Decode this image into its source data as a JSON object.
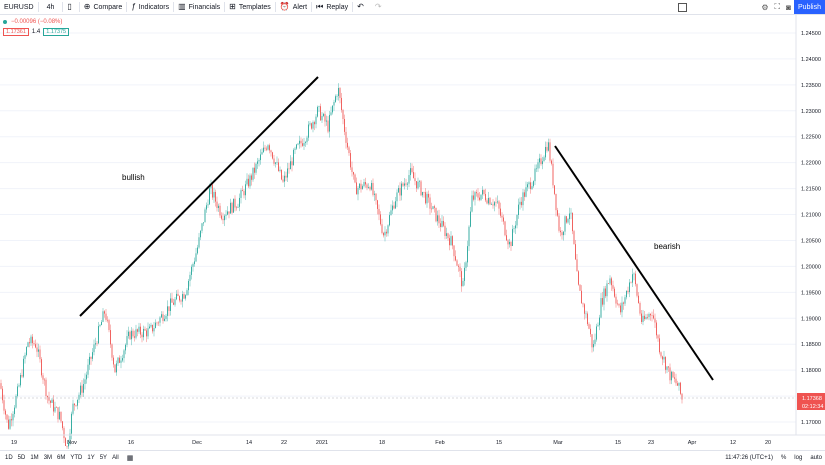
{
  "toolbar": {
    "symbol": "EURUSD",
    "interval": "4h",
    "compare": "Compare",
    "indicators": "Indicators",
    "financials": "Financials",
    "templates": "Templates",
    "alert": "Alert",
    "replay": "Replay",
    "publish": "Publish"
  },
  "legend": {
    "change": "−0.00096 (−0.08%)",
    "bid": "1.17361",
    "spread": "1.4",
    "ask": "1.17375"
  },
  "annotations": {
    "bullish": "bullish",
    "bearish": "bearish"
  },
  "price_axis": {
    "ticks": [
      "1.24500",
      "1.24000",
      "1.23500",
      "1.23000",
      "1.22500",
      "1.22000",
      "1.21500",
      "1.21000",
      "1.20500",
      "1.20000",
      "1.19500",
      "1.19000",
      "1.18500",
      "1.18000",
      "1.17500",
      "1.17000"
    ],
    "last_price": "1.17368",
    "countdown": "02:12:34"
  },
  "time_axis": {
    "labels": [
      "19",
      "Nov",
      "16",
      "Dec",
      "14",
      "22",
      "2021",
      "18",
      "Feb",
      "15",
      "Mar",
      "15",
      "23",
      "Apr",
      "12",
      "20"
    ]
  },
  "bottom": {
    "ranges": [
      "1D",
      "5D",
      "1M",
      "3M",
      "6M",
      "YTD",
      "1Y",
      "5Y",
      "All"
    ],
    "clock": "11:47:26 (UTC+1)",
    "percent": "%",
    "log": "log",
    "auto": "auto"
  },
  "colors": {
    "up": "#26a69a",
    "down": "#ef5350",
    "accent": "#2962ff"
  },
  "chart_data": {
    "type": "candlestick",
    "symbol": "EURUSD",
    "interval": "4h",
    "ylim": [
      1.1675,
      1.2475
    ],
    "price_path": [
      [
        0,
        1.1775
      ],
      [
        8,
        1.169
      ],
      [
        18,
        1.176
      ],
      [
        28,
        1.1855
      ],
      [
        36,
        1.185
      ],
      [
        48,
        1.1745
      ],
      [
        60,
        1.171
      ],
      [
        67,
        1.165
      ],
      [
        73,
        1.173
      ],
      [
        83,
        1.177
      ],
      [
        95,
        1.185
      ],
      [
        105,
        1.1915
      ],
      [
        115,
        1.18
      ],
      [
        130,
        1.187
      ],
      [
        150,
        1.1875
      ],
      [
        170,
        1.1925
      ],
      [
        185,
        1.195
      ],
      [
        198,
        1.204
      ],
      [
        210,
        1.215
      ],
      [
        222,
        1.21
      ],
      [
        238,
        1.2125
      ],
      [
        252,
        1.2175
      ],
      [
        268,
        1.224
      ],
      [
        283,
        1.216
      ],
      [
        295,
        1.222
      ],
      [
        305,
        1.225
      ],
      [
        318,
        1.23
      ],
      [
        328,
        1.227
      ],
      [
        338,
        1.2345
      ],
      [
        344,
        1.227
      ],
      [
        355,
        1.215
      ],
      [
        370,
        1.216
      ],
      [
        384,
        1.206
      ],
      [
        395,
        1.213
      ],
      [
        410,
        1.218
      ],
      [
        422,
        1.2145
      ],
      [
        438,
        1.209
      ],
      [
        452,
        1.2045
      ],
      [
        463,
        1.196
      ],
      [
        472,
        1.213
      ],
      [
        482,
        1.214
      ],
      [
        497,
        1.212
      ],
      [
        510,
        1.204
      ],
      [
        520,
        1.2125
      ],
      [
        536,
        1.218
      ],
      [
        548,
        1.224
      ],
      [
        560,
        1.206
      ],
      [
        570,
        1.211
      ],
      [
        578,
        1.196
      ],
      [
        588,
        1.189
      ],
      [
        593,
        1.184
      ],
      [
        601,
        1.193
      ],
      [
        610,
        1.198
      ],
      [
        620,
        1.191
      ],
      [
        633,
        1.199
      ],
      [
        642,
        1.189
      ],
      [
        652,
        1.1915
      ],
      [
        660,
        1.184
      ],
      [
        670,
        1.179
      ],
      [
        678,
        1.177
      ],
      [
        683,
        1.1737
      ]
    ]
  }
}
